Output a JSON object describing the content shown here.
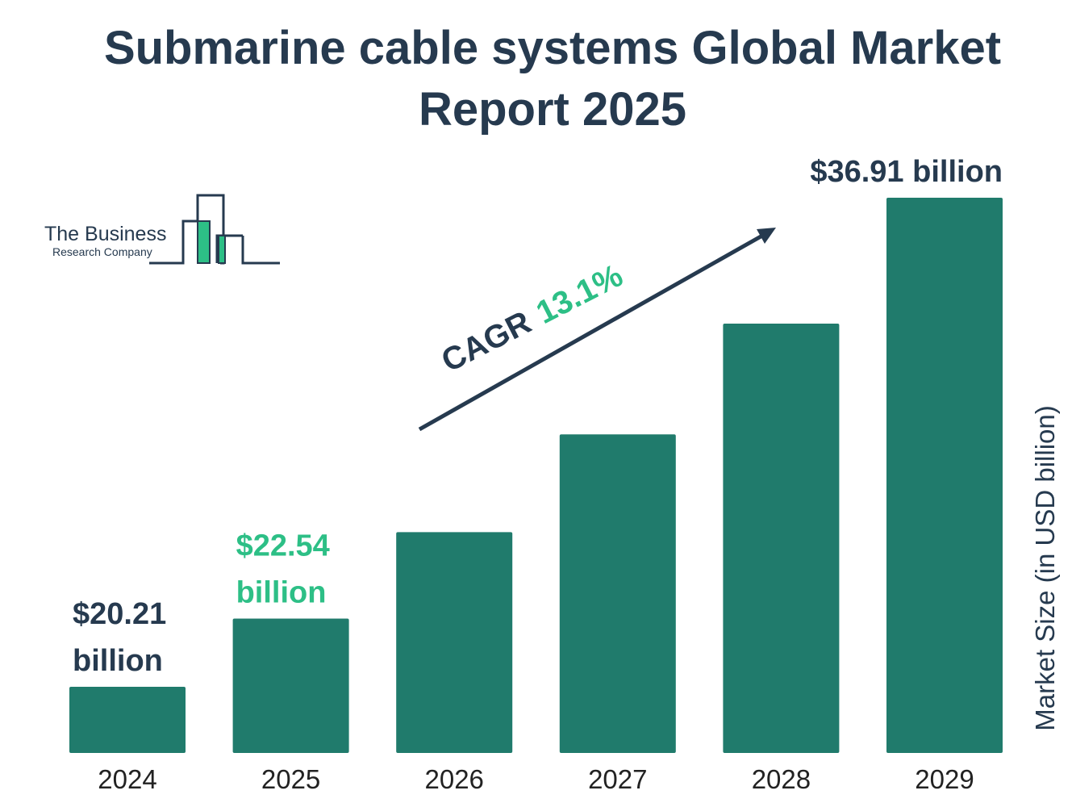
{
  "title": "Submarine cable systems Global Market Report 2025",
  "logo": {
    "line1": "The Business",
    "line2": "Research Company"
  },
  "colors": {
    "bar": "#207b6c",
    "text_dark": "#263a4f",
    "accent_green": "#2dbf86"
  },
  "cagr": {
    "label": "CAGR",
    "value": "13.1%"
  },
  "chart_data": {
    "type": "bar",
    "title": "Submarine cable systems Global Market Report 2025",
    "ylabel": "Market Size (in USD billion)",
    "xlabel": "",
    "ylim": [
      0,
      36.91
    ],
    "categories": [
      "2024",
      "2025",
      "2026",
      "2027",
      "2028",
      "2029"
    ],
    "values": [
      20.21,
      22.54,
      25.49,
      28.83,
      32.61,
      36.91
    ],
    "data_labels": [
      {
        "index": 0,
        "lines": [
          "$20.21",
          "billion"
        ],
        "color": "dark"
      },
      {
        "index": 1,
        "lines": [
          "$22.54",
          "billion"
        ],
        "color": "green"
      },
      {
        "index": 5,
        "lines": [
          "$36.91 billion"
        ],
        "color": "dark"
      }
    ],
    "grid": false,
    "legend": "none"
  }
}
